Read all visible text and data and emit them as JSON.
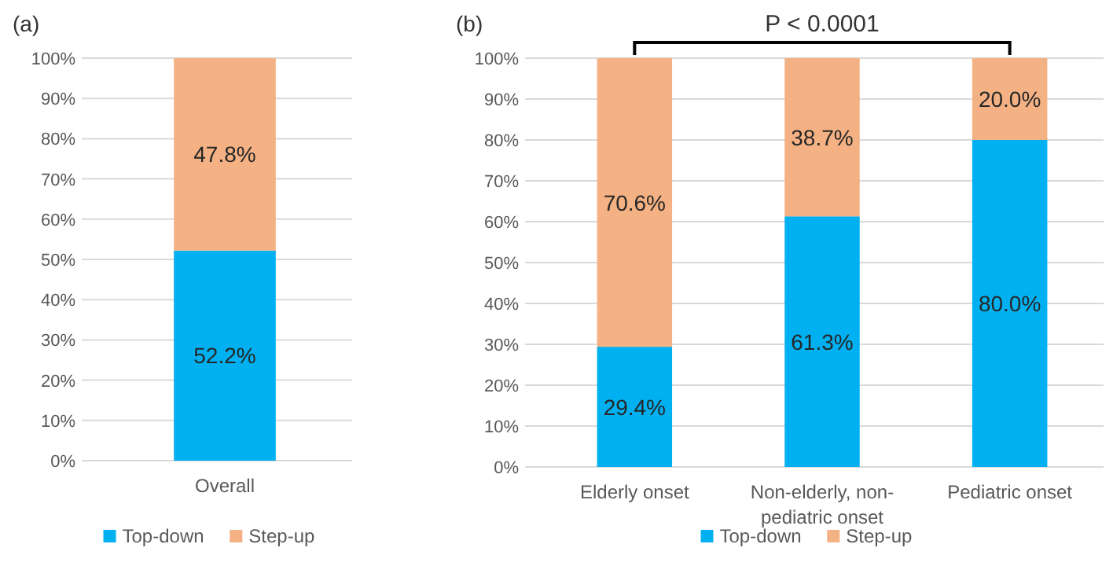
{
  "chart_data": [
    {
      "type": "bar",
      "title": "(a)",
      "categories": [
        "Overall"
      ],
      "stacked": true,
      "grid": "y",
      "legend": "bottom",
      "ylim": [
        0,
        100
      ],
      "yticks": [
        {
          "value": 0,
          "label": "0%"
        },
        {
          "value": 10,
          "label": "10%"
        },
        {
          "value": 20,
          "label": "20%"
        },
        {
          "value": 30,
          "label": "30%"
        },
        {
          "value": 40,
          "label": "40%"
        },
        {
          "value": 50,
          "label": "50%"
        },
        {
          "value": 60,
          "label": "60%"
        },
        {
          "value": 70,
          "label": "70%"
        },
        {
          "value": 80,
          "label": "80%"
        },
        {
          "value": 90,
          "label": "90%"
        },
        {
          "value": 100,
          "label": "100%"
        }
      ],
      "series": [
        {
          "name": "Top-down",
          "color": "#00b0f0",
          "values": [
            52.2
          ],
          "value_labels": [
            "52.2%"
          ]
        },
        {
          "name": "Step-up",
          "color": "#f4b183",
          "values": [
            47.8
          ],
          "value_labels": [
            "47.8%"
          ]
        }
      ]
    },
    {
      "type": "bar",
      "title": "(b)",
      "categories": [
        "Elderly onset",
        "Non-elderly, non-pediatric onset",
        "Pediatric onset"
      ],
      "stacked": true,
      "grid": "y",
      "legend": "bottom",
      "ylim": [
        0,
        100
      ],
      "yticks": [
        {
          "value": 0,
          "label": "0%"
        },
        {
          "value": 10,
          "label": "10%"
        },
        {
          "value": 20,
          "label": "20%"
        },
        {
          "value": 30,
          "label": "30%"
        },
        {
          "value": 40,
          "label": "40%"
        },
        {
          "value": 50,
          "label": "50%"
        },
        {
          "value": 60,
          "label": "60%"
        },
        {
          "value": 70,
          "label": "70%"
        },
        {
          "value": 80,
          "label": "80%"
        },
        {
          "value": 90,
          "label": "90%"
        },
        {
          "value": 100,
          "label": "100%"
        }
      ],
      "annotations": [
        "P < 0.0001"
      ],
      "series": [
        {
          "name": "Top-down",
          "color": "#00b0f0",
          "values": [
            29.4,
            61.3,
            80.0
          ],
          "value_labels": [
            "29.4%",
            "61.3%",
            "80.0%"
          ]
        },
        {
          "name": "Step-up",
          "color": "#f4b183",
          "values": [
            70.6,
            38.7,
            20.0
          ],
          "value_labels": [
            "70.6%",
            "38.7%",
            "20.0%"
          ]
        }
      ]
    }
  ]
}
